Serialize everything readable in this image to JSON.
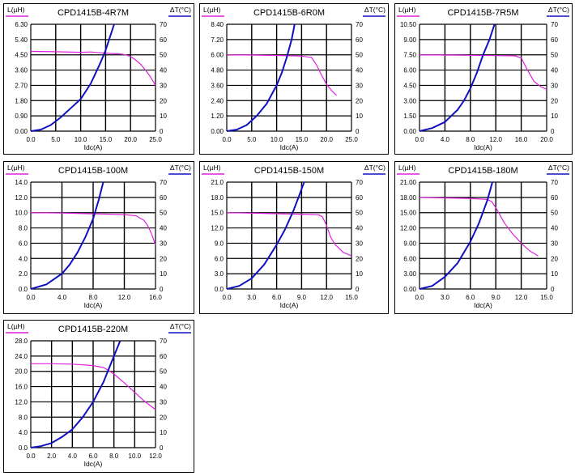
{
  "colors": {
    "inductance": "#e020e0",
    "temperature": "#1010c0"
  },
  "chart_data": [
    {
      "type": "line",
      "title": "CPD1415B-4R7M",
      "xlabel": "Idc(A)",
      "ylabel": "L(µH)",
      "y2label": "ΔT(°C)",
      "xlim": [
        0,
        25
      ],
      "xticks": [
        "0.0",
        "5.0",
        "10.0",
        "15.0",
        "20.0",
        "25.0"
      ],
      "ylim": [
        0,
        6.3
      ],
      "yticks": [
        "0.00",
        "0.90",
        "1.80",
        "2.70",
        "3.60",
        "4.50",
        "5.40",
        "6.30"
      ],
      "y2lim": [
        0,
        70
      ],
      "y2ticks": [
        "0",
        "10",
        "20",
        "30",
        "40",
        "50",
        "60",
        "70"
      ],
      "series": [
        {
          "name": "L(µH)",
          "axis": "left",
          "x": [
            0,
            5,
            10,
            12,
            15,
            18,
            19,
            20,
            21,
            22,
            23,
            24,
            25
          ],
          "y": [
            4.7,
            4.68,
            4.65,
            4.67,
            4.6,
            4.55,
            4.5,
            4.4,
            4.2,
            3.95,
            3.6,
            3.2,
            2.7
          ]
        },
        {
          "name": "ΔT(°C)",
          "axis": "right",
          "x": [
            0,
            2,
            4,
            6,
            8,
            10,
            12,
            13,
            14,
            15,
            16,
            16.7
          ],
          "y": [
            0,
            1,
            4,
            9,
            15,
            21,
            31,
            38,
            45,
            53,
            63,
            70
          ]
        }
      ]
    },
    {
      "type": "line",
      "title": "CPD1415B-6R0M",
      "xlabel": "Idc(A)",
      "ylabel": "L(µH)",
      "y2label": "ΔT(°C)",
      "xlim": [
        0,
        25
      ],
      "xticks": [
        "0.0",
        "5.0",
        "10.0",
        "15.0",
        "20.0",
        "25.0"
      ],
      "ylim": [
        0,
        8.4
      ],
      "yticks": [
        "0.00",
        "1.20",
        "2.40",
        "3.60",
        "4.80",
        "6.00",
        "7.20",
        "8.40"
      ],
      "y2lim": [
        0,
        70
      ],
      "y2ticks": [
        "0",
        "10",
        "20",
        "30",
        "40",
        "50",
        "60",
        "70"
      ],
      "series": [
        {
          "name": "L(µH)",
          "axis": "left",
          "x": [
            0,
            5,
            10,
            15,
            17,
            18,
            19,
            20,
            21,
            22
          ],
          "y": [
            6.0,
            5.98,
            5.95,
            5.9,
            5.8,
            5.2,
            4.4,
            3.7,
            3.2,
            2.8
          ]
        },
        {
          "name": "ΔT(°C)",
          "axis": "right",
          "x": [
            0,
            2,
            4,
            6,
            8,
            10,
            11,
            12,
            13,
            13.6
          ],
          "y": [
            0,
            1,
            4,
            10,
            18,
            30,
            38,
            48,
            60,
            70
          ]
        }
      ]
    },
    {
      "type": "line",
      "title": "CPD1415B-7R5M",
      "xlabel": "Idc(A)",
      "ylabel": "L(µH)",
      "y2label": "ΔT(°C)",
      "xlim": [
        0,
        20
      ],
      "xticks": [
        "0.0",
        "4.0",
        "8.0",
        "12.0",
        "16.0",
        "20.0"
      ],
      "ylim": [
        0,
        10.5
      ],
      "yticks": [
        "0.00",
        "1.50",
        "3.00",
        "4.50",
        "6.00",
        "7.50",
        "9.00",
        "10.50"
      ],
      "y2lim": [
        0,
        70
      ],
      "y2ticks": [
        "0",
        "10",
        "20",
        "30",
        "40",
        "50",
        "60",
        "70"
      ],
      "series": [
        {
          "name": "L(µH)",
          "axis": "left",
          "x": [
            0,
            4,
            8,
            12,
            15,
            16,
            16.5,
            17,
            18,
            19,
            20
          ],
          "y": [
            7.5,
            7.48,
            7.45,
            7.42,
            7.4,
            7.2,
            6.6,
            6.0,
            4.9,
            4.4,
            4.1
          ]
        },
        {
          "name": "ΔT(°C)",
          "axis": "right",
          "x": [
            0,
            2,
            4,
            6,
            7,
            8,
            9,
            10,
            11,
            11.8
          ],
          "y": [
            0,
            2,
            6,
            14,
            20,
            28,
            38,
            50,
            60,
            70
          ]
        }
      ]
    },
    {
      "type": "line",
      "title": "CPD1415B-100M",
      "xlabel": "Idc(A)",
      "ylabel": "L(µH)",
      "y2label": "ΔT(°C)",
      "xlim": [
        0,
        16
      ],
      "xticks": [
        "0.0",
        "4.0",
        "8.0",
        "12.0",
        "16.0"
      ],
      "ylim": [
        0,
        14
      ],
      "yticks": [
        "0.0",
        "2.0",
        "4.0",
        "6.0",
        "8.0",
        "10.0",
        "12.0",
        "14.0"
      ],
      "y2lim": [
        0,
        70
      ],
      "y2ticks": [
        "0",
        "10",
        "20",
        "30",
        "40",
        "50",
        "60",
        "70"
      ],
      "series": [
        {
          "name": "L(µH)",
          "axis": "left",
          "x": [
            0,
            4,
            8,
            12,
            13.5,
            14.5,
            15,
            15.5,
            16
          ],
          "y": [
            10,
            9.95,
            9.85,
            9.75,
            9.6,
            9.0,
            8.3,
            7.2,
            5.8
          ]
        },
        {
          "name": "ΔT(°C)",
          "axis": "right",
          "x": [
            0,
            2,
            4,
            5,
            6,
            7,
            8,
            8.7,
            9.3
          ],
          "y": [
            0,
            3,
            10,
            16,
            24,
            34,
            46,
            58,
            70
          ]
        }
      ]
    },
    {
      "type": "line",
      "title": "CPD1415B-150M",
      "xlabel": "Idc(A)",
      "ylabel": "L(µH)",
      "y2label": "ΔT(°C)",
      "xlim": [
        0,
        15
      ],
      "xticks": [
        "0.0",
        "3.0",
        "6.0",
        "9.0",
        "12.0",
        "15.0"
      ],
      "ylim": [
        0,
        21
      ],
      "yticks": [
        "0.0",
        "3.0",
        "6.0",
        "9.0",
        "12.0",
        "15.0",
        "18.0",
        "21.0"
      ],
      "y2lim": [
        0,
        70
      ],
      "y2ticks": [
        "0",
        "10",
        "20",
        "30",
        "40",
        "50",
        "60",
        "70"
      ],
      "series": [
        {
          "name": "L(µH)",
          "axis": "left",
          "x": [
            0,
            3,
            6,
            9,
            11,
            11.5,
            12,
            12.5,
            13,
            14,
            15
          ],
          "y": [
            15,
            14.9,
            14.8,
            14.7,
            14.6,
            14.2,
            12.5,
            10.2,
            8.8,
            7.2,
            6.5
          ]
        },
        {
          "name": "ΔT(°C)",
          "axis": "right",
          "x": [
            0,
            1.5,
            3,
            4.5,
            6,
            7,
            8,
            8.7,
            9.3
          ],
          "y": [
            0,
            2,
            7,
            16,
            29,
            39,
            51,
            61,
            70
          ]
        }
      ]
    },
    {
      "type": "line",
      "title": "CPD1415B-180M",
      "xlabel": "Idc(A)",
      "ylabel": "L(µH)",
      "y2label": "ΔT(°C)",
      "xlim": [
        0,
        15
      ],
      "xticks": [
        "0.0",
        "3.0",
        "6.0",
        "9.0",
        "12.0",
        "15.0"
      ],
      "ylim": [
        0,
        21
      ],
      "yticks": [
        "0.00",
        "3.00",
        "6.00",
        "9.00",
        "12.00",
        "15.00",
        "18.00",
        "21.00"
      ],
      "y2lim": [
        0,
        70
      ],
      "y2ticks": [
        "0",
        "10",
        "20",
        "30",
        "40",
        "50",
        "60",
        "70"
      ],
      "series": [
        {
          "name": "L(µH)",
          "axis": "left",
          "x": [
            0,
            3,
            6,
            8,
            8.5,
            9,
            10,
            11,
            12,
            13,
            14
          ],
          "y": [
            18,
            17.9,
            17.8,
            17.6,
            17.2,
            16,
            13,
            10.8,
            9,
            7.5,
            6.5
          ]
        },
        {
          "name": "ΔT(°C)",
          "axis": "right",
          "x": [
            0,
            1.5,
            3,
            4.5,
            6,
            7,
            8,
            8.6
          ],
          "y": [
            0,
            2,
            8,
            17,
            31,
            43,
            58,
            70
          ]
        }
      ]
    },
    {
      "type": "line",
      "title": "CPD1415B-220M",
      "xlabel": "Idc(A)",
      "ylabel": "L(µH)",
      "y2label": "ΔT(°C)",
      "xlim": [
        0,
        12
      ],
      "xticks": [
        "0.0",
        "2.0",
        "4.0",
        "6.0",
        "8.0",
        "10.0",
        "12.0"
      ],
      "ylim": [
        0,
        28
      ],
      "yticks": [
        "0.0",
        "4.0",
        "8.0",
        "12.0",
        "16.0",
        "20.0",
        "24.0",
        "28.0"
      ],
      "y2lim": [
        0,
        70
      ],
      "y2ticks": [
        "0",
        "10",
        "20",
        "30",
        "40",
        "50",
        "60",
        "70"
      ],
      "series": [
        {
          "name": "L(µH)",
          "axis": "left",
          "x": [
            0,
            2,
            4,
            6,
            7,
            7.5,
            8,
            9,
            10,
            11,
            12
          ],
          "y": [
            22,
            22,
            21.9,
            21.5,
            21,
            20.2,
            19.3,
            17,
            14.5,
            12,
            10
          ]
        },
        {
          "name": "ΔT(°C)",
          "axis": "right",
          "x": [
            0,
            1,
            2,
            3,
            4,
            5,
            6,
            7,
            8,
            8.6
          ],
          "y": [
            0,
            1,
            3,
            7,
            12,
            20,
            30,
            43,
            60,
            70
          ]
        }
      ]
    }
  ]
}
